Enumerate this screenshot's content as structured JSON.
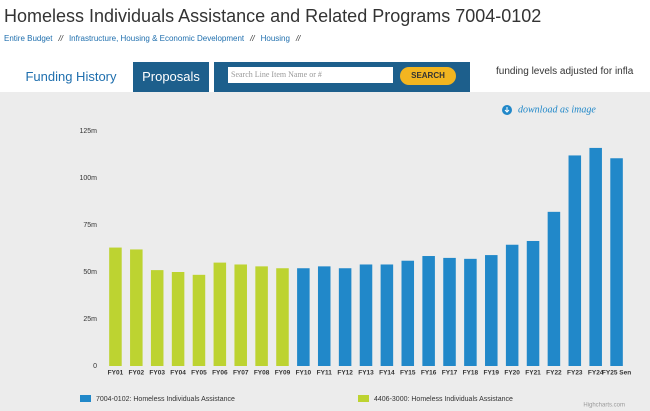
{
  "header": {
    "title": "Homeless Individuals Assistance and Related Programs 7004-0102",
    "breadcrumb": [
      "Entire Budget",
      "Infrastructure, Housing & Economic Development",
      "Housing"
    ],
    "separator": "//"
  },
  "tabs": [
    "Funding History",
    "Proposals"
  ],
  "search": {
    "placeholder": "Search Line Item Name or #",
    "button": "SEARCH"
  },
  "note": "funding levels adjusted for infla",
  "download": "download as image",
  "credit": "Highcharts.com",
  "chart_data": {
    "type": "bar",
    "categories": [
      "FY01",
      "FY02",
      "FY03",
      "FY04",
      "FY05",
      "FY06",
      "FY07",
      "FY08",
      "FY09",
      "FY10",
      "FY11",
      "FY12",
      "FY13",
      "FY14",
      "FY15",
      "FY16",
      "FY17",
      "FY18",
      "FY19",
      "FY20",
      "FY21",
      "FY22",
      "FY23",
      "FY24",
      "FY25 Sen"
    ],
    "series": [
      {
        "name": "7004-0102: Homeless Individuals Assistance",
        "color": "#2188c9",
        "values": [
          null,
          null,
          null,
          null,
          null,
          null,
          null,
          null,
          null,
          52,
          53,
          52,
          54,
          54,
          56,
          58.5,
          57.5,
          57,
          59,
          64.5,
          66.5,
          82,
          112,
          116,
          110.5
        ]
      },
      {
        "name": "4406-3000: Homeless Individuals Assistance",
        "color": "#bdd331",
        "values": [
          63,
          62,
          51,
          50,
          48.5,
          55,
          54,
          53,
          52,
          null,
          null,
          null,
          null,
          null,
          null,
          null,
          null,
          null,
          null,
          null,
          null,
          null,
          null,
          null,
          null
        ]
      }
    ],
    "ylim": [
      0,
      125
    ],
    "yticks": [
      0,
      {
        "value": 25,
        "label": "25m"
      },
      {
        "value": 50,
        "label": "50m"
      },
      {
        "value": 75,
        "label": "75m"
      },
      {
        "value": 100,
        "label": "100m"
      },
      {
        "value": 125,
        "label": "125m"
      }
    ],
    "grid": false
  }
}
